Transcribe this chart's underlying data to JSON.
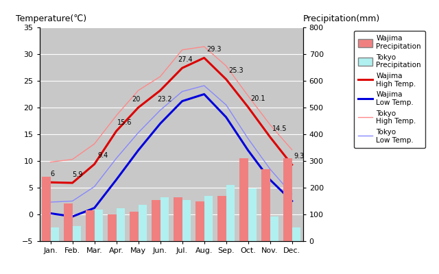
{
  "months": [
    "Jan.",
    "Feb.",
    "Mar.",
    "Apr.",
    "May",
    "Jun.",
    "Jul.",
    "Aug.",
    "Sep.",
    "Oct.",
    "Nov.",
    "Dec."
  ],
  "wajima_precip": [
    240,
    140,
    115,
    100,
    110,
    155,
    165,
    150,
    170,
    310,
    270,
    310
  ],
  "tokyo_precip": [
    52,
    56,
    117,
    124,
    137,
    165,
    153,
    168,
    209,
    197,
    92,
    51
  ],
  "wajima_high": [
    6.0,
    5.9,
    9.4,
    15.6,
    20.0,
    23.2,
    27.4,
    29.3,
    25.3,
    20.1,
    14.5,
    9.3
  ],
  "wajima_low": [
    0.2,
    -0.4,
    1.2,
    6.5,
    12.0,
    17.0,
    21.2,
    22.5,
    18.2,
    12.0,
    6.5,
    2.5
  ],
  "tokyo_high": [
    9.8,
    10.3,
    13.2,
    18.5,
    23.2,
    25.8,
    30.8,
    31.4,
    27.8,
    22.2,
    16.8,
    12.1
  ],
  "tokyo_low": [
    2.3,
    2.5,
    5.2,
    10.5,
    15.3,
    19.5,
    23.0,
    24.1,
    20.5,
    14.2,
    8.5,
    3.8
  ],
  "wajima_high_labels": [
    "6",
    "5.9",
    "9.4",
    "15.6",
    "20",
    "23.2",
    "27.4",
    "29.3",
    "25.3",
    "20.1",
    "14.5",
    "9.3"
  ],
  "wajima_color_bar": "#f08080",
  "tokyo_color_bar": "#b0f0f0",
  "wajima_high_color": "#dd0000",
  "wajima_low_color": "#0000dd",
  "tokyo_high_color": "#ff8888",
  "tokyo_low_color": "#8888ff",
  "temp_ylim": [
    -5,
    35
  ],
  "precip_ylim": [
    0,
    800
  ],
  "title_left": "Temperature(℃)",
  "title_right": "Precipitation(mm)",
  "background_color": "#c8c8c8",
  "bar_width": 0.38,
  "label_offset_x": [
    0.0,
    0.0,
    0.15,
    0.05,
    -0.3,
    -0.15,
    -0.2,
    0.1,
    0.1,
    0.1,
    0.1,
    0.1
  ],
  "label_offset_y": [
    1.2,
    1.2,
    1.2,
    1.2,
    1.2,
    -2.0,
    1.2,
    1.2,
    1.2,
    1.2,
    1.2,
    1.2
  ]
}
